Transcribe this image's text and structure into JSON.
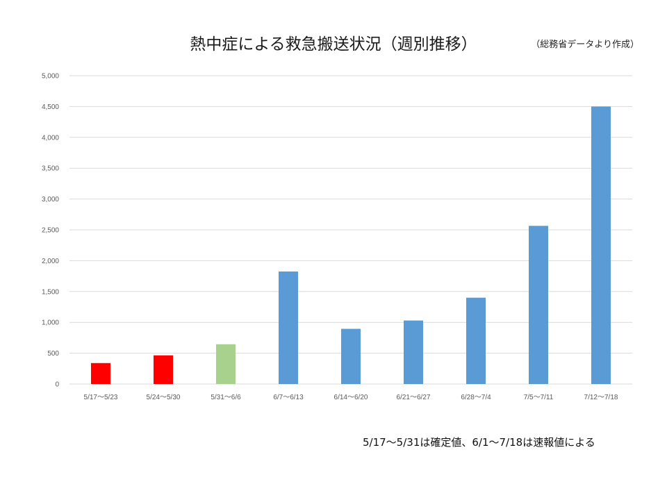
{
  "header": {
    "title": "熱中症による救急搬送状況（週別推移）",
    "source": "（総務省データより作成）"
  },
  "footnote": "5/17～5/31は確定値、6/1～7/18は速報値による",
  "colors": {
    "confirmed": "#ff0000",
    "transition": "#a9d18e",
    "preliminary": "#5b9bd5",
    "grid": "#d9d9d9"
  },
  "chart_data": {
    "type": "bar",
    "title": "熱中症による救急搬送状況（週別推移）",
    "xlabel": "",
    "ylabel": "",
    "ylim": [
      0,
      5000
    ],
    "yticks": [
      0,
      500,
      1000,
      1500,
      2000,
      2500,
      3000,
      3500,
      4000,
      4500,
      5000
    ],
    "ytick_labels": [
      "0",
      "500",
      "1,000",
      "1,500",
      "2,000",
      "2,500",
      "3,000",
      "3,500",
      "4,000",
      "4,500",
      "5,000"
    ],
    "grid": true,
    "legend": "none",
    "categories": [
      "5/17～5/23",
      "5/24～5/30",
      "5/31～6/6",
      "6/7～6/13",
      "6/14～6/20",
      "6/21～6/27",
      "6/28～7/4",
      "7/5～7/11",
      "7/12～7/18"
    ],
    "values": [
      340,
      465,
      645,
      1825,
      895,
      1030,
      1400,
      2565,
      4500
    ],
    "bar_colors": [
      "#ff0000",
      "#ff0000",
      "#a9d18e",
      "#5b9bd5",
      "#5b9bd5",
      "#5b9bd5",
      "#5b9bd5",
      "#5b9bd5",
      "#5b9bd5"
    ]
  }
}
